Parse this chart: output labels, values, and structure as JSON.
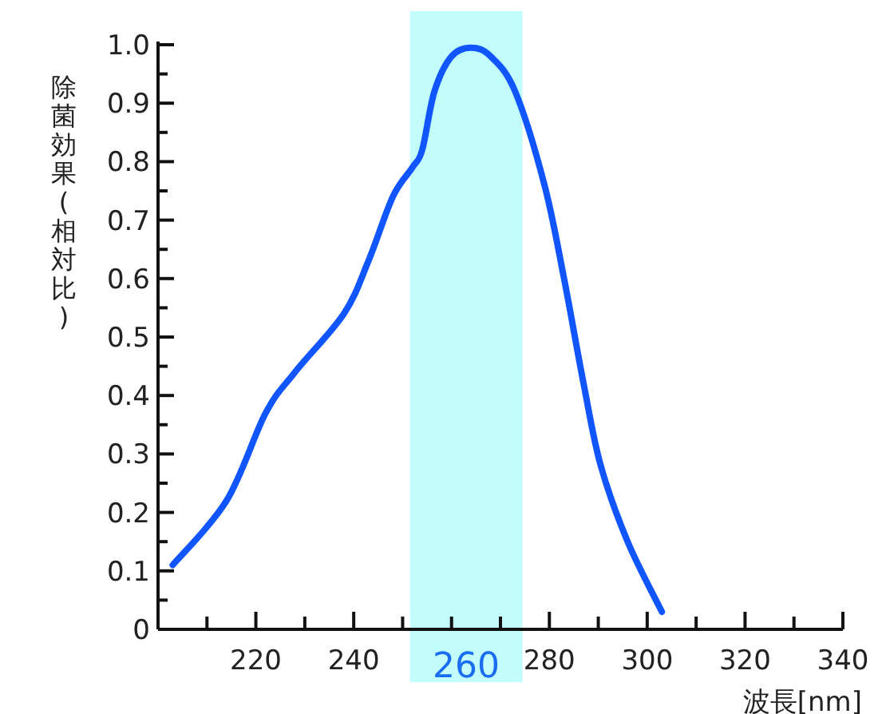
{
  "chart_data": {
    "type": "line",
    "xlabel": "波長[nm]",
    "ylabel": "除菌効果(相対比)",
    "xlim": [
      200,
      340
    ],
    "ylim": [
      0,
      1.0
    ],
    "xticks": [
      {
        "value": 210,
        "label": null
      },
      220,
      {
        "value": 230,
        "label": null
      },
      240,
      {
        "value": 250,
        "label": null
      },
      {
        "value": 260,
        "label": null
      },
      {
        "value": 270,
        "label": null
      },
      280,
      {
        "value": 290,
        "label": null
      },
      300,
      {
        "value": 310,
        "label": null
      },
      320,
      {
        "value": 330,
        "label": null
      },
      340
    ],
    "yticks": [
      {
        "value": 0,
        "label": "0"
      },
      {
        "value": 0.05,
        "label": null
      },
      0.1,
      {
        "value": 0.15,
        "label": null
      },
      0.2,
      {
        "value": 0.25,
        "label": null
      },
      0.3,
      {
        "value": 0.35,
        "label": null
      },
      0.4,
      {
        "value": 0.45,
        "label": null
      },
      0.5,
      {
        "value": 0.55,
        "label": null
      },
      0.6,
      {
        "value": 0.65,
        "label": null
      },
      0.7,
      {
        "value": 0.75,
        "label": null
      },
      0.8,
      {
        "value": 0.85,
        "label": null
      },
      0.9,
      {
        "value": 0.95,
        "label": null
      },
      {
        "value": 1.0,
        "label": "1.0"
      }
    ],
    "bands": [
      {
        "axis": "x",
        "from": 251.5,
        "to": 274.5,
        "label": "260",
        "color": "#c2fcfc"
      }
    ],
    "marker": "none",
    "line_style": "solid",
    "series": [
      {
        "color": "#1155ff",
        "x": [
          203,
          214,
          222,
          228,
          238,
          243,
          248,
          252,
          254,
          256.5,
          260,
          264,
          268,
          273,
          279,
          283,
          287,
          290.5,
          296,
          303
        ],
        "values": [
          0.11,
          0.22,
          0.37,
          0.44,
          0.54,
          0.63,
          0.74,
          0.79,
          0.82,
          0.92,
          0.98,
          0.995,
          0.98,
          0.92,
          0.76,
          0.6,
          0.42,
          0.28,
          0.15,
          0.03
        ]
      }
    ]
  }
}
